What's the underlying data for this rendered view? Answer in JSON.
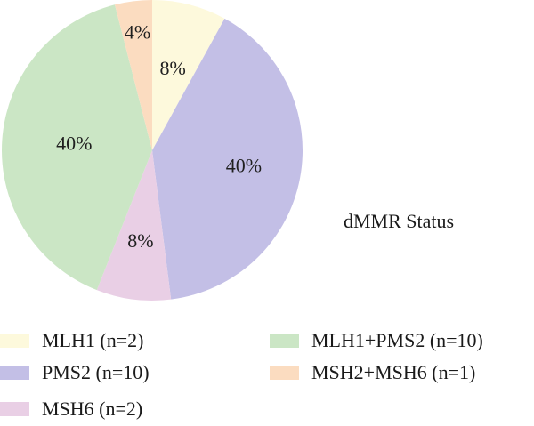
{
  "chart_data": {
    "type": "pie",
    "title": "dMMR Status",
    "slices": [
      {
        "label": "MLH1 (n=2)",
        "value": 2,
        "percent_label": "8%",
        "color": "#fdf9dc"
      },
      {
        "label": "PMS2 (n=10)",
        "value": 10,
        "percent_label": "40%",
        "color": "#c3bfe6"
      },
      {
        "label": "MSH6 (n=2)",
        "value": 2,
        "percent_label": "8%",
        "color": "#e9cfe5"
      },
      {
        "label": "MLH1+PMS2 (n=10)",
        "value": 10,
        "percent_label": "40%",
        "color": "#cbe6c5"
      },
      {
        "label": "MSH2+MSH6 (n=1)",
        "value": 1,
        "percent_label": "4%",
        "color": "#fbdcc0"
      }
    ],
    "start_angle": "12 o'clock",
    "direction": "clockwise",
    "legend_position": "bottom"
  }
}
